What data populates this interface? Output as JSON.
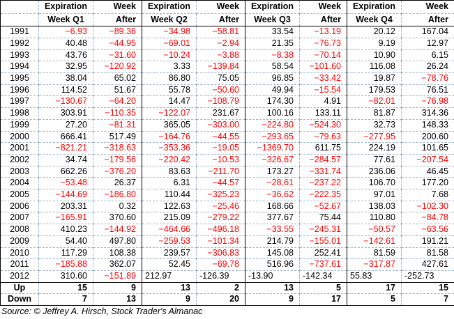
{
  "chart_data": {
    "type": "table",
    "title": "",
    "columns": [
      "Year",
      "Expiration Week Q1",
      "Week After",
      "Expiration Week Q2",
      "Week After",
      "Expiration Week Q3",
      "Week After",
      "Expiration Week Q4",
      "Week After"
    ],
    "header_row1": [
      "",
      "Expiration",
      "Week",
      "Expiration",
      "Week",
      "Expiration",
      "Week",
      "Expiration",
      "Week"
    ],
    "header_row2": [
      "",
      "Week Q1",
      "After",
      "Week Q2",
      "After",
      "Week Q3",
      "After",
      "Week Q4",
      "After"
    ],
    "rows": [
      {
        "label": "1991",
        "values": [
          "−6.93",
          "−89.36",
          "−34.98",
          "−58.81",
          "33.54",
          "−13.19",
          "20.12",
          "167.04"
        ]
      },
      {
        "label": "1992",
        "values": [
          "40.48",
          "−44.95",
          "−69.01",
          "−2.94",
          "21.35",
          "−76.73",
          "9.19",
          "12.97"
        ]
      },
      {
        "label": "1993",
        "values": [
          "43.76",
          "−31.60",
          "−10.24",
          "−3.88",
          "−8.38",
          "−70.14",
          "10.90",
          "6.15"
        ]
      },
      {
        "label": "1994",
        "values": [
          "32.95",
          "−120.92",
          "3.33",
          "−139.84",
          "58.54",
          "−101.60",
          "116.08",
          "26.24"
        ]
      },
      {
        "label": "1995",
        "values": [
          "38.04",
          "65.02",
          "86.80",
          "75.05",
          "96.85",
          "−33.42",
          "19.87",
          "−78.76"
        ]
      },
      {
        "label": "1996",
        "values": [
          "114.52",
          "51.67",
          "55.78",
          "−50.60",
          "49.94",
          "−15.54",
          "179.53",
          "76.51"
        ]
      },
      {
        "label": "1997",
        "values": [
          "−130.67",
          "−64.20",
          "14.47",
          "−108.79",
          "174.30",
          "4.91",
          "−82.01",
          "−76.98"
        ]
      },
      {
        "label": "1998",
        "values": [
          "303.91",
          "−110.35",
          "−122.07",
          "231.67",
          "100.16",
          "133.11",
          "81.87",
          "314.36"
        ]
      },
      {
        "label": "1999",
        "values": [
          "27.20",
          "−81.31",
          "365.05",
          "−303.00",
          "−224.80",
          "−524.30",
          "32.73",
          "148.33"
        ]
      },
      {
        "label": "2000",
        "values": [
          "666.41",
          "517.49",
          "−164.76",
          "−44.55",
          "−293.65",
          "−79.63",
          "−277.95",
          "200.60"
        ]
      },
      {
        "label": "2001",
        "values": [
          "−821.21",
          "−318.63",
          "−353.36",
          "−19.05",
          "−1369.70",
          "611.75",
          "224.19",
          "101.65"
        ]
      },
      {
        "label": "2002",
        "values": [
          "34.74",
          "−179.56",
          "−220.42",
          "−10.53",
          "−326.67",
          "−284.57",
          "77.61",
          "−207.54"
        ]
      },
      {
        "label": "2003",
        "values": [
          "662.26",
          "−376.20",
          "83.63",
          "−211.70",
          "173.27",
          "−331.74",
          "236.06",
          "46.45"
        ]
      },
      {
        "label": "2004",
        "values": [
          "−53.48",
          "26.37",
          "6.31",
          "−44.57",
          "−28.61",
          "−237.22",
          "106.70",
          "177.20"
        ]
      },
      {
        "label": "2005",
        "values": [
          "−144.69",
          "−186.80",
          "110.44",
          "−325.23",
          "−36.62",
          "−222.35",
          "97.01",
          "7.68"
        ]
      },
      {
        "label": "2006",
        "values": [
          "203.31",
          "0.32",
          "122.63",
          "−25.46",
          "168.66",
          "−52.67",
          "138.03",
          "−102.30"
        ]
      },
      {
        "label": "2007",
        "values": [
          "−165.91",
          "370.60",
          "215.09",
          "−279.22",
          "377.67",
          "75.44",
          "110.80",
          "−84.78"
        ]
      },
      {
        "label": "2008",
        "values": [
          "410.23",
          "−144.92",
          "−464.66",
          "−496.18",
          "−33.55",
          "−245.31",
          "−50.57",
          "−63.56"
        ]
      },
      {
        "label": "2009",
        "values": [
          "54.40",
          "497.80",
          "−259.53",
          "−101.34",
          "214.79",
          "−155.01",
          "−142.61",
          "191.21"
        ]
      },
      {
        "label": "2010",
        "values": [
          "117.29",
          "108.38",
          "239.57",
          "−306.83",
          "145.08",
          "252.41",
          "81.59",
          "81.58"
        ]
      },
      {
        "label": "2011",
        "values": [
          "−185.88",
          "362.07",
          "52.45",
          "−69.78",
          "516.96",
          "−737.61",
          "−317.87",
          "427.61"
        ]
      },
      {
        "label": "2012",
        "values": [
          "310.60",
          "−151.89",
          "212.97",
          "-126.39",
          "-13.90",
          "-142.34",
          "55.83",
          "-252.73"
        ],
        "plain_left_from": 2
      }
    ],
    "summary_rows": [
      {
        "label": "Up",
        "values": [
          "15",
          "9",
          "13",
          "2",
          "13",
          "5",
          "17",
          "15"
        ]
      },
      {
        "label": "Down",
        "values": [
          "7",
          "13",
          "9",
          "20",
          "9",
          "17",
          "5",
          "7"
        ]
      }
    ],
    "layout": {
      "grid": "dashed-internal",
      "group_dividers": "solid-black-before-each-quarter",
      "negative_color": "red"
    }
  },
  "footer": {
    "source": "Source: © Jeffrey A. Hirsch, Stock Trader's Almanac"
  },
  "colors": {
    "negative": "#ff0000",
    "grid_dashed": "#9fb4c7",
    "solid_border": "#000000"
  }
}
